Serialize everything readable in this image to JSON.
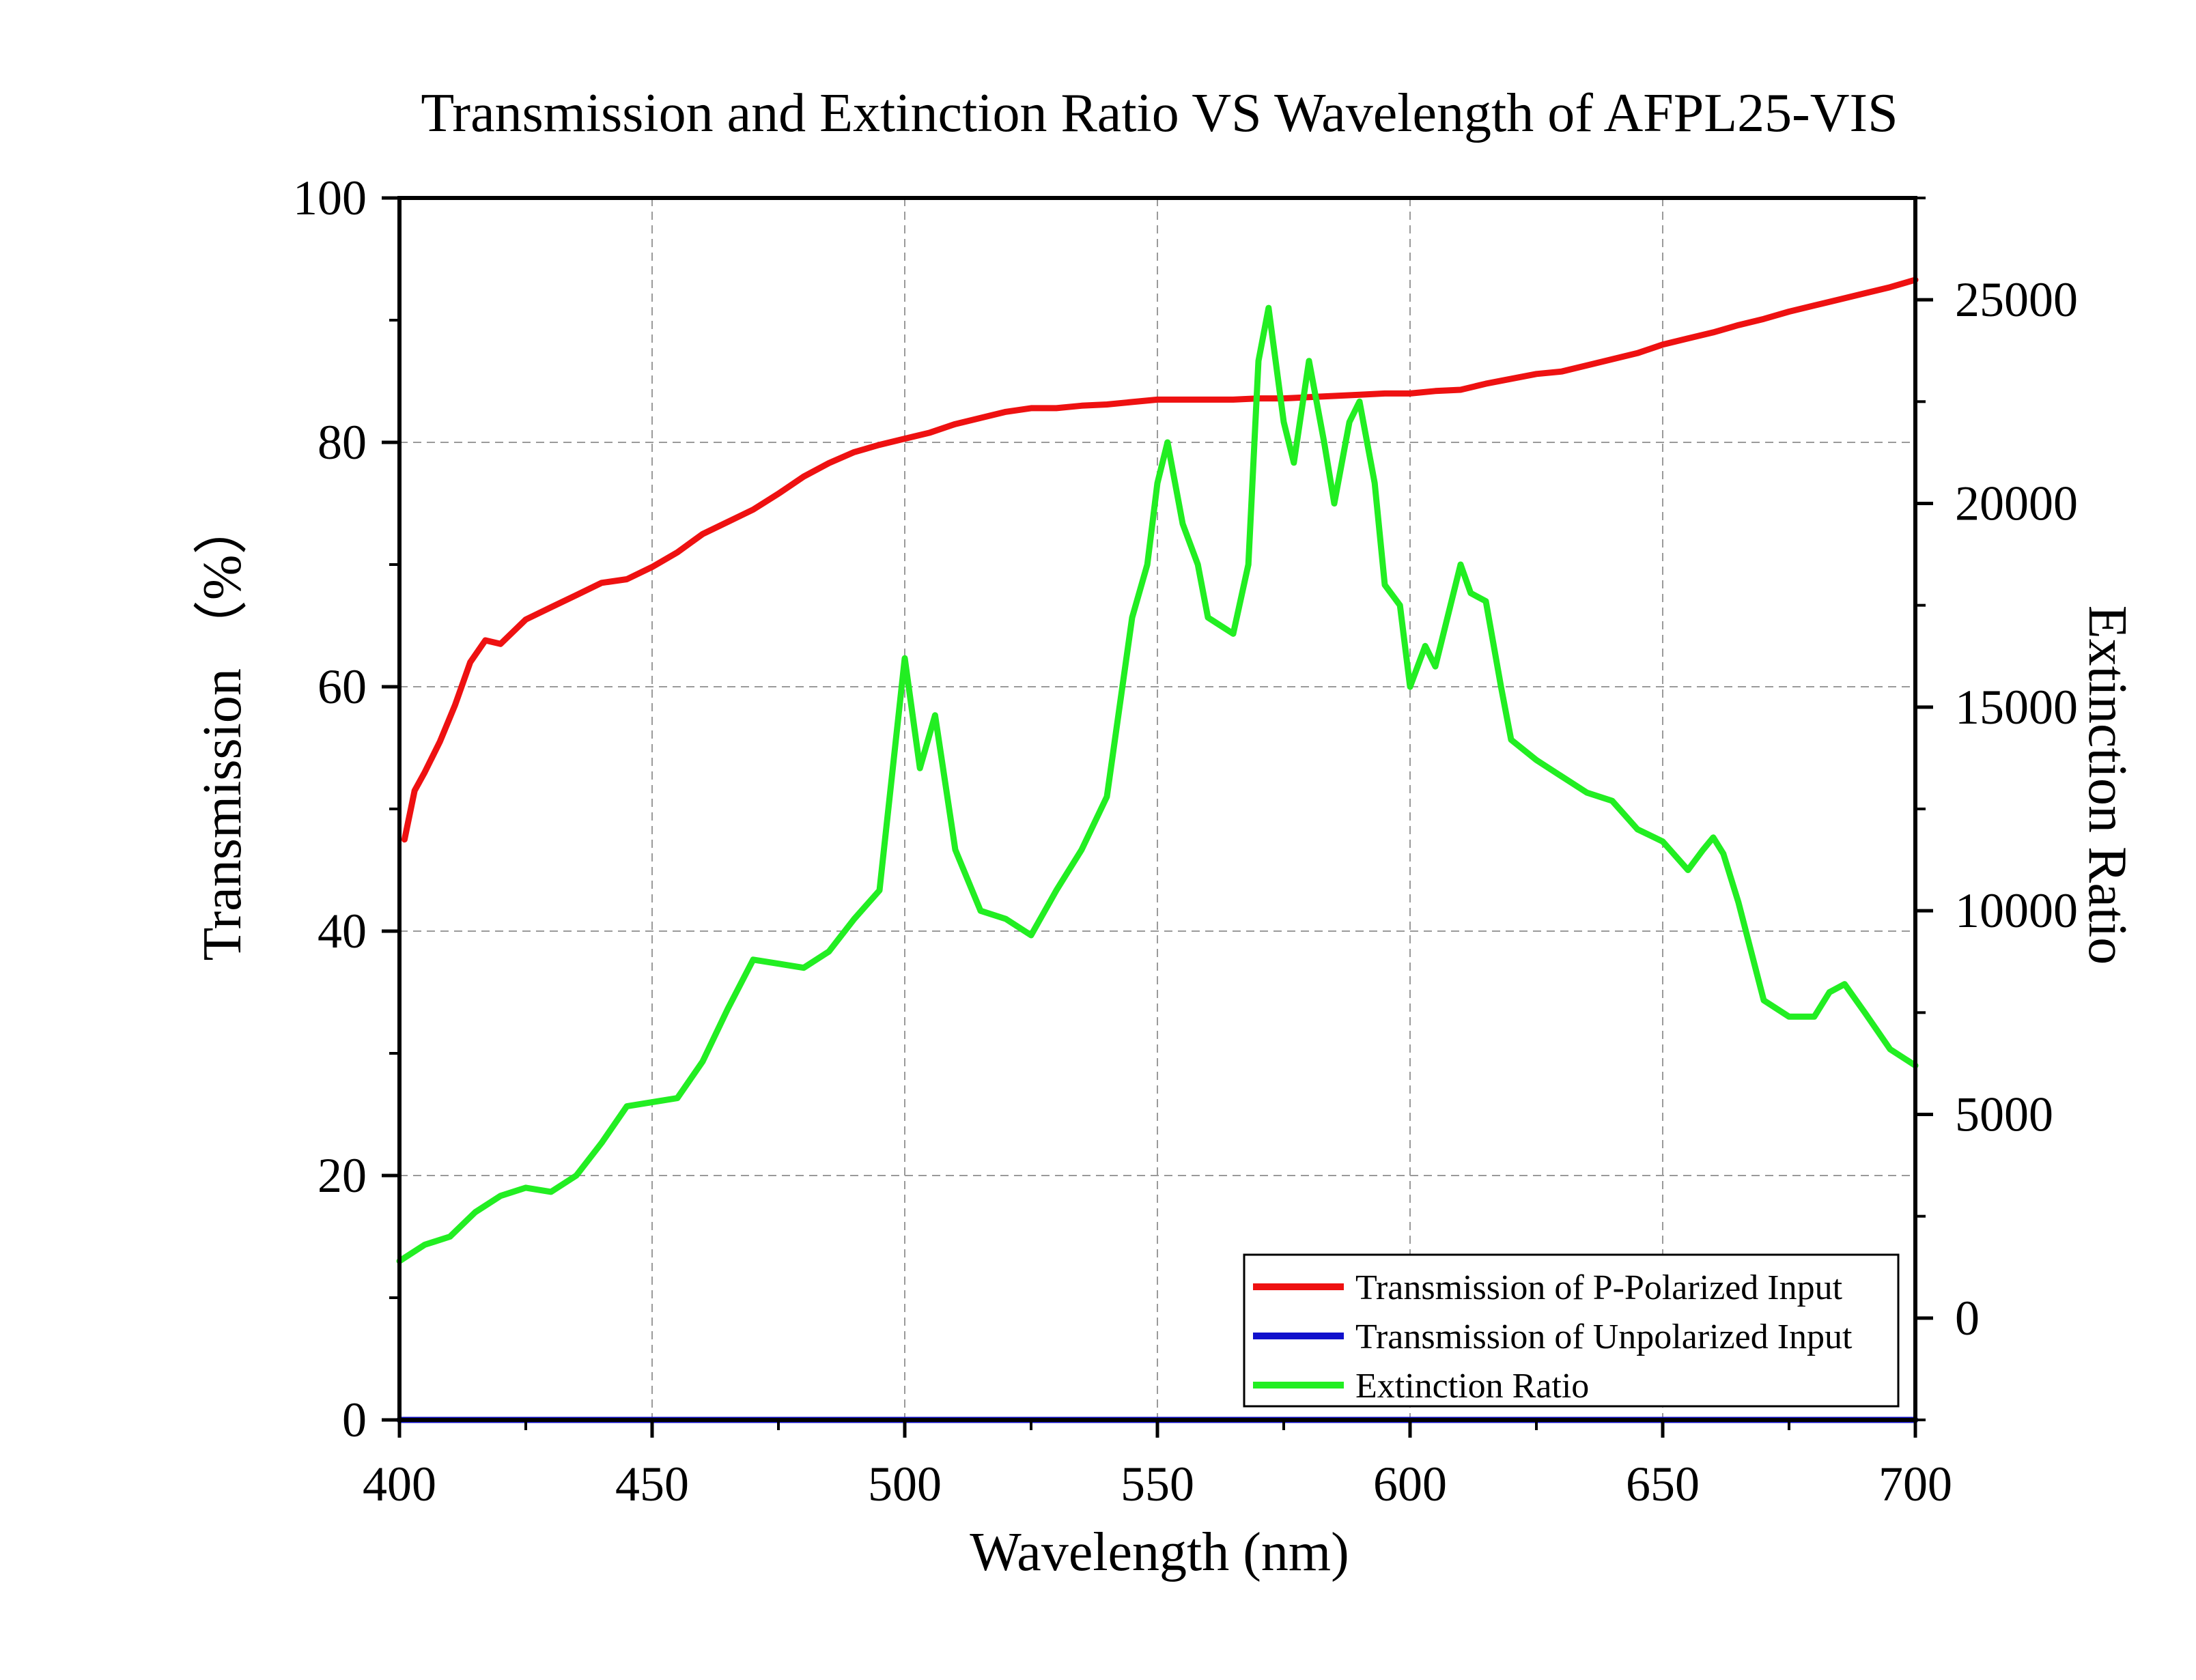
{
  "chart_data": {
    "type": "line",
    "title": "Transmission and Extinction Ratio VS Wavelength of AFPL25-VIS",
    "xlabel": "Wavelength (nm)",
    "ylabel": "Transmission （%）",
    "y2label": "Extinction Ratio",
    "xlim": [
      400,
      700
    ],
    "ylim": [
      0,
      100
    ],
    "y2lim": [
      -2500,
      27500
    ],
    "x_ticks": [
      400,
      450,
      500,
      550,
      600,
      650,
      700
    ],
    "x_tick_labels": [
      "400",
      "450",
      "500",
      "550",
      "600",
      "650",
      "700"
    ],
    "y_ticks": [
      0,
      20,
      40,
      60,
      80,
      100
    ],
    "y_tick_labels": [
      "0",
      "20",
      "40",
      "60",
      "80",
      "100"
    ],
    "y2_ticks": [
      0,
      5000,
      10000,
      15000,
      20000,
      25000
    ],
    "y2_tick_labels": [
      "0",
      "5000",
      "10000",
      "15000",
      "20000",
      "25000"
    ],
    "grid": true,
    "legend_position": "bottom-right",
    "series": [
      {
        "name": "Transmission of P-Polarized Input",
        "axis": "left",
        "color": "#ee1111",
        "x": [
          401,
          403,
          405,
          408,
          411,
          414,
          417,
          420,
          425,
          430,
          435,
          440,
          445,
          450,
          455,
          460,
          465,
          470,
          475,
          480,
          485,
          490,
          495,
          500,
          505,
          510,
          515,
          520,
          525,
          530,
          535,
          540,
          545,
          550,
          555,
          560,
          565,
          570,
          575,
          580,
          585,
          590,
          595,
          600,
          605,
          610,
          615,
          620,
          625,
          630,
          635,
          640,
          645,
          650,
          655,
          660,
          665,
          670,
          675,
          680,
          685,
          690,
          695,
          700
        ],
        "values": [
          47.5,
          51.5,
          53.0,
          55.5,
          58.5,
          62.0,
          63.8,
          63.5,
          65.5,
          66.5,
          67.5,
          68.5,
          68.8,
          69.8,
          71.0,
          72.5,
          73.5,
          74.5,
          75.8,
          77.2,
          78.3,
          79.2,
          79.8,
          80.3,
          80.8,
          81.5,
          82.0,
          82.5,
          82.8,
          82.8,
          83.0,
          83.1,
          83.3,
          83.5,
          83.5,
          83.5,
          83.5,
          83.6,
          83.6,
          83.7,
          83.8,
          83.9,
          84.0,
          84.0,
          84.2,
          84.3,
          84.8,
          85.2,
          85.6,
          85.8,
          86.3,
          86.8,
          87.3,
          88.0,
          88.5,
          89.0,
          89.6,
          90.1,
          90.7,
          91.2,
          91.7,
          92.2,
          92.7,
          93.3
        ]
      },
      {
        "name": "Transmission of Unpolarized Input",
        "axis": "left",
        "color": "#1111cc",
        "x": [
          400,
          700
        ],
        "values": [
          0,
          0
        ]
      },
      {
        "name": "Extinction Ratio",
        "axis": "right",
        "color": "#22ee22",
        "x": [
          400,
          405,
          410,
          415,
          420,
          425,
          430,
          435,
          440,
          445,
          450,
          455,
          460,
          465,
          470,
          475,
          480,
          485,
          490,
          495,
          500,
          503,
          506,
          510,
          515,
          520,
          525,
          530,
          535,
          540,
          545,
          548,
          550,
          552,
          555,
          558,
          560,
          565,
          568,
          570,
          572,
          575,
          577,
          580,
          583,
          585,
          588,
          590,
          593,
          595,
          598,
          600,
          603,
          605,
          608,
          610,
          612,
          615,
          618,
          620,
          625,
          630,
          635,
          640,
          645,
          650,
          655,
          658,
          660,
          662,
          665,
          670,
          675,
          680,
          683,
          686,
          690,
          695,
          700
        ],
        "values": [
          1400,
          1800,
          2000,
          2600,
          3000,
          3200,
          3100,
          3500,
          4300,
          5200,
          5300,
          5400,
          6300,
          7600,
          8800,
          8700,
          8600,
          9000,
          9800,
          10500,
          16200,
          13500,
          14800,
          11500,
          10000,
          9800,
          9400,
          10500,
          11500,
          12800,
          17200,
          18500,
          20500,
          21500,
          19500,
          18500,
          17200,
          16800,
          18500,
          23500,
          24800,
          22000,
          21000,
          23500,
          21500,
          20000,
          22000,
          22500,
          20500,
          18000,
          17500,
          15500,
          16500,
          16000,
          17500,
          18500,
          17800,
          17600,
          15500,
          14200,
          13700,
          13300,
          12900,
          12700,
          12000,
          11700,
          11000,
          11500,
          11800,
          11400,
          10200,
          7800,
          7400,
          7400,
          8000,
          8200,
          7500,
          6600,
          6200
        ]
      }
    ]
  }
}
